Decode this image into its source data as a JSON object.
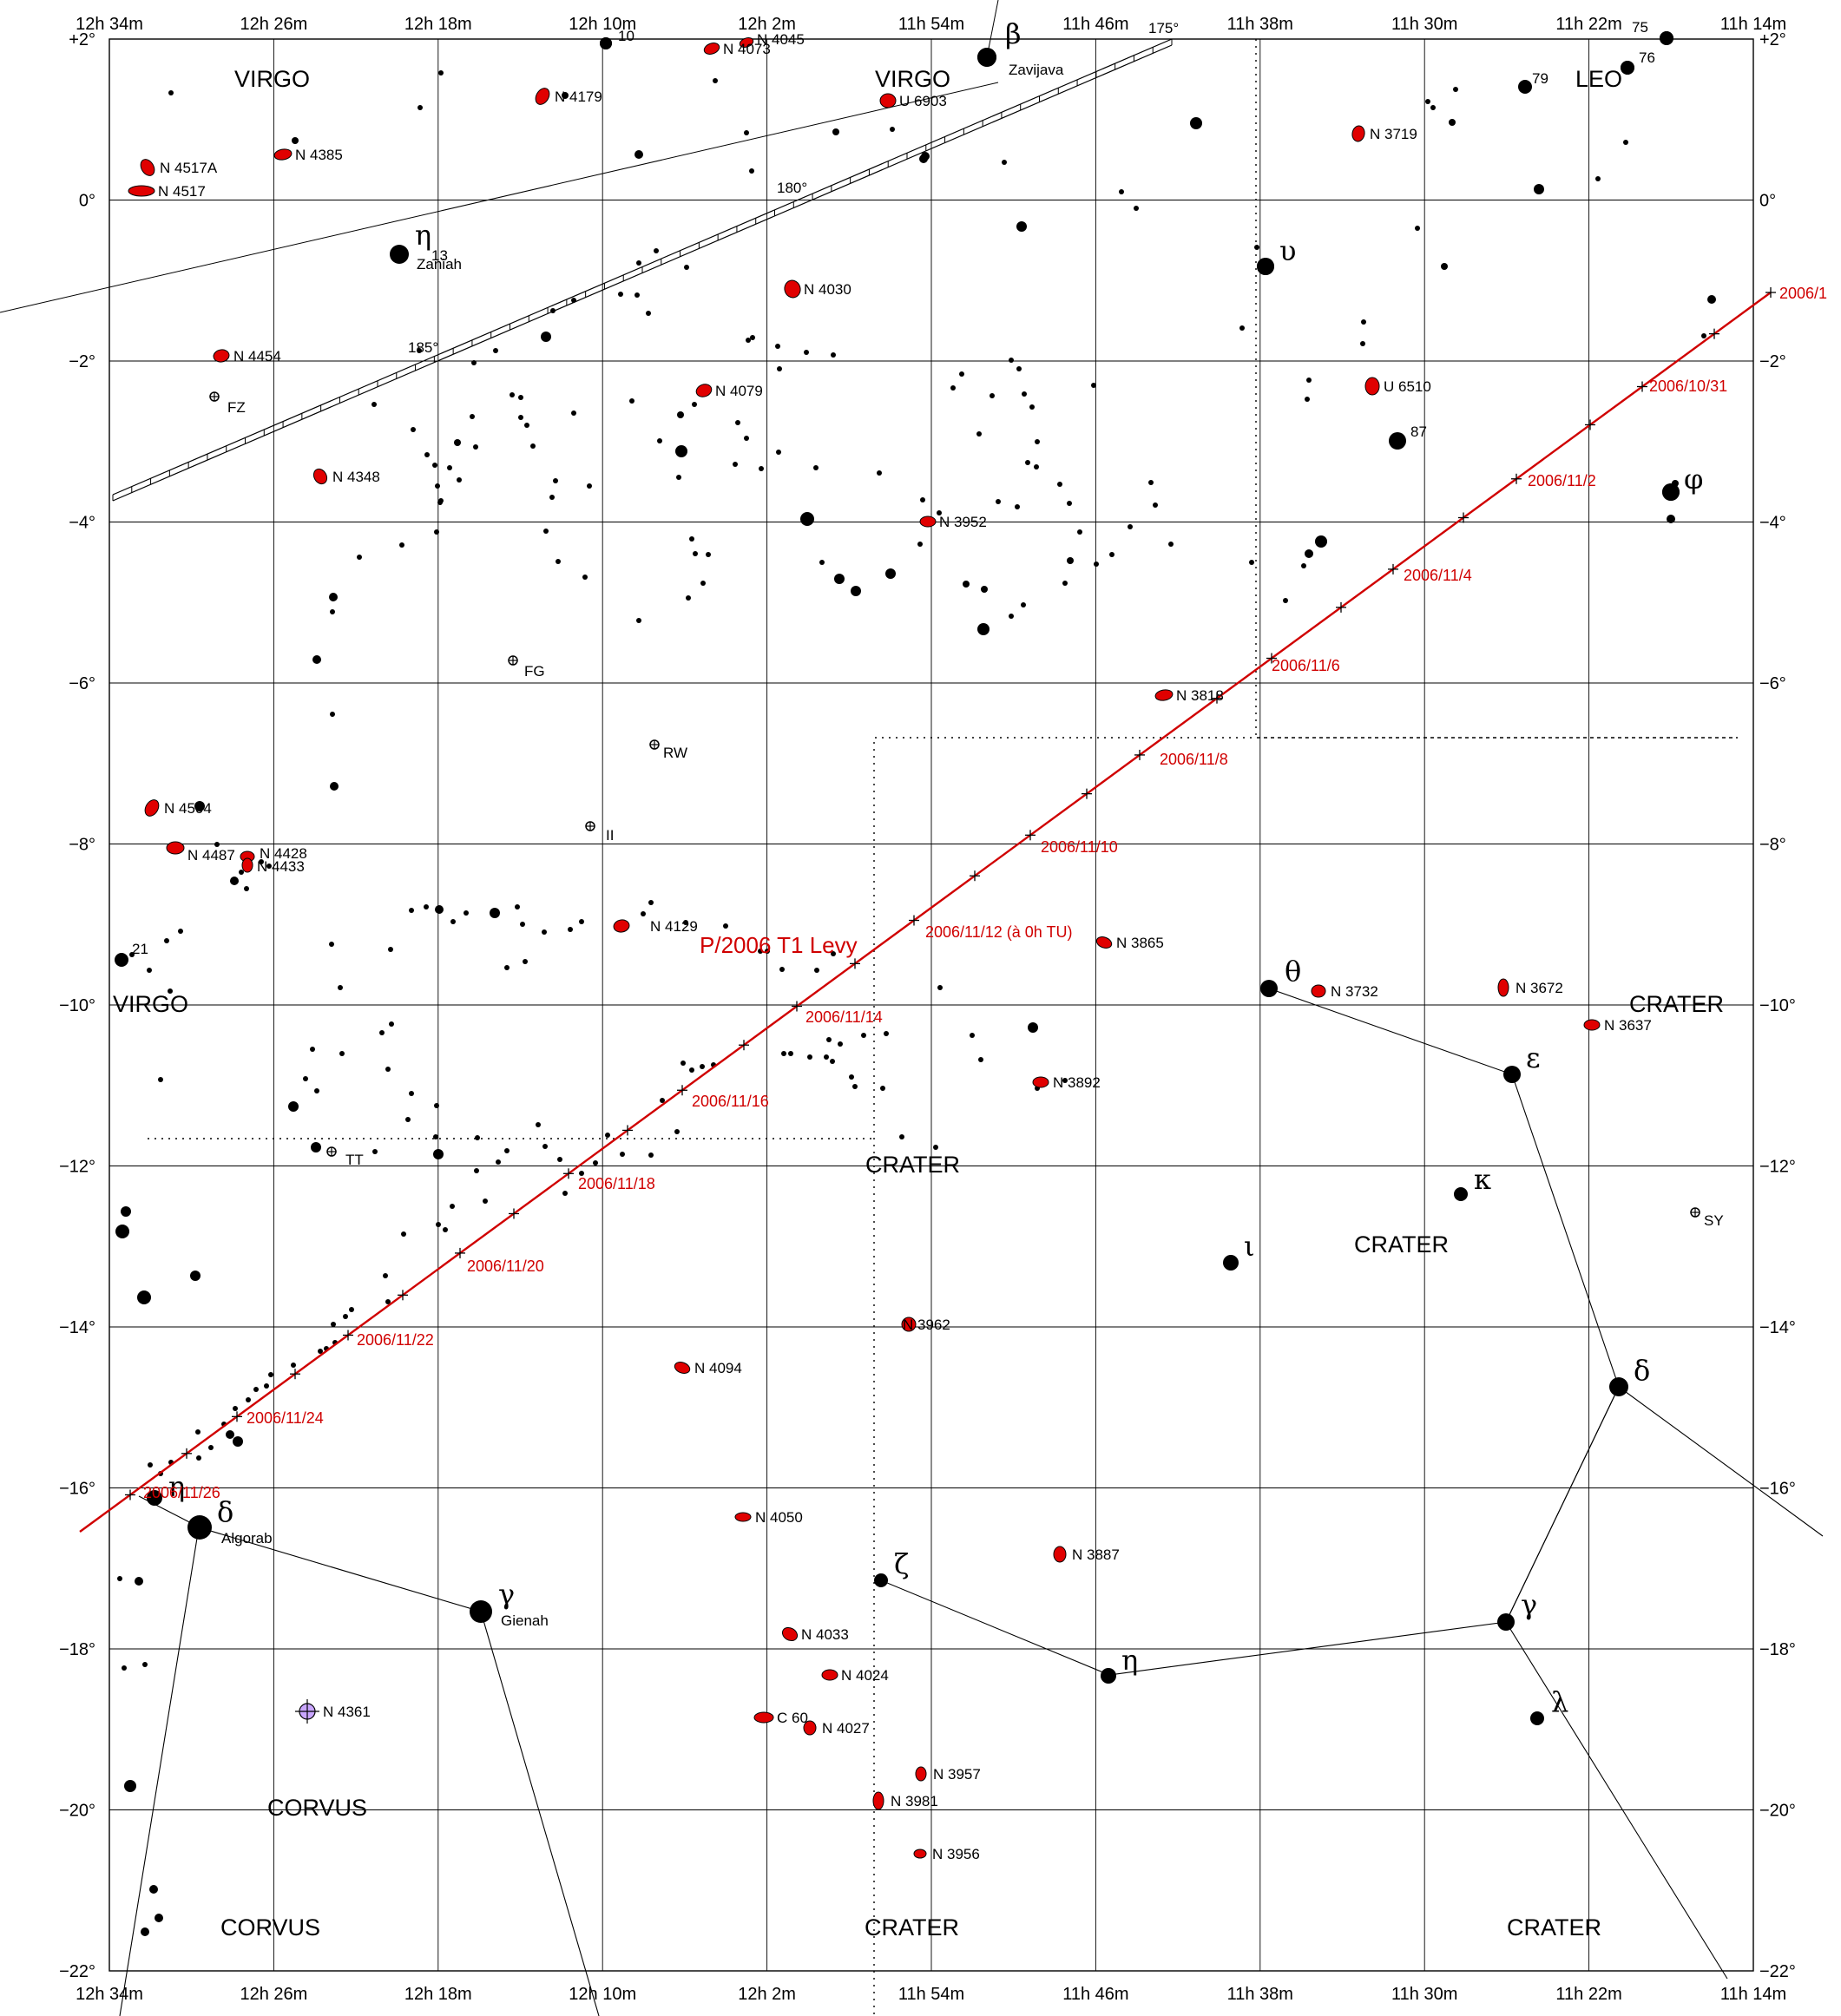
{
  "chart_data": {
    "type": "star_chart",
    "title": "P/2006 T1 Levy",
    "ra_ticks": [
      "12h 34m",
      "12h 26m",
      "12h 18m",
      "12h 10m",
      "12h 2m",
      "11h 54m",
      "11h 46m",
      "11h 38m",
      "11h 30m",
      "11h 22m",
      "11h 14m"
    ],
    "dec_ticks": [
      "+2°",
      "0°",
      "−2°",
      "−4°",
      "−6°",
      "−8°",
      "−10°",
      "−12°",
      "−14°",
      "−16°",
      "−18°",
      "−20°",
      "−22°"
    ],
    "dec_ticks_right": [
      "+2°",
      "0°",
      "−2°",
      "−4°",
      "−6°",
      "−8°",
      "−10°",
      "−12°",
      "−14°",
      "−16°",
      "−18°",
      "−20°",
      "−22°"
    ],
    "ra_range": [
      "12h 34m",
      "11h 14m"
    ],
    "dec_range": [
      2,
      -22
    ],
    "comet_path": [
      {
        "date": "2006/10/31",
        "ra": "11h 18.5m",
        "dec": -2.4
      },
      {
        "date": "2006/11/2",
        "ra": "11h 24.1m",
        "dec": -3.6
      },
      {
        "date": "2006/11/4",
        "ra": "11h 30.0m",
        "dec": -4.7
      },
      {
        "date": "2006/11/6",
        "ra": "11h 36.3m",
        "dec": -5.9
      },
      {
        "date": "2006/11/8",
        "ra": "11h 42.6m",
        "dec": -7.0
      },
      {
        "date": "2006/11/10",
        "ra": "11h 48.2m",
        "dec": -8.1
      },
      {
        "date": "2006/11/12 (à 0h TU)",
        "ra": "11h 54.0m",
        "dec": -9.2
      },
      {
        "date": "2006/11/14",
        "ra": "11h 59.6m",
        "dec": -10.2
      },
      {
        "date": "2006/11/16",
        "ra": "12h 5.1m",
        "dec": -11.2
      },
      {
        "date": "2006/11/18",
        "ra": "12h 10.8m",
        "dec": -12.3
      },
      {
        "date": "2006/11/20",
        "ra": "12h 16.4m",
        "dec": -13.3
      },
      {
        "date": "2006/11/22",
        "ra": "12h 22.0m",
        "dec": -14.3
      },
      {
        "date": "2006/11/24",
        "ra": "12h 27.7m",
        "dec": -15.2
      },
      {
        "date": "2006/11/26",
        "ra": "12h 33.0m",
        "dec": -16.1
      }
    ],
    "path_label_top": "2006/1",
    "constellations": [
      {
        "name": "VIRGO",
        "ra": "12h 29m",
        "dec": 1.5
      },
      {
        "name": "VIRGO",
        "ra": "11h 54m",
        "dec": 1.5
      },
      {
        "name": "LEO",
        "ra": "11h 21m",
        "dec": 1.5
      },
      {
        "name": "VIRGO",
        "ra": "12h 32m",
        "dec": -10.0
      },
      {
        "name": "CRATER",
        "ra": "11h 16m",
        "dec": -10.0
      },
      {
        "name": "CRATER",
        "ra": "11h 54m",
        "dec": -12.0
      },
      {
        "name": "CRATER",
        "ra": "11h 30m",
        "dec": -13.0
      },
      {
        "name": "CORVUS",
        "ra": "12h 25m",
        "dec": -20.0
      },
      {
        "name": "CORVUS",
        "ra": "12h 27m",
        "dec": -21.5
      },
      {
        "name": "CRATER",
        "ra": "11h 56m",
        "dec": -21.5
      },
      {
        "name": "CRATER",
        "ra": "11h 22m",
        "dec": -21.5
      }
    ],
    "ecliptic_labels": [
      "175°",
      "180°",
      "185°"
    ],
    "named_stars": [
      {
        "greek": "β",
        "name": "Zavijava"
      },
      {
        "greek": "η",
        "name": "Zaniah",
        "flamsteed": "13"
      },
      {
        "greek": "υ"
      },
      {
        "greek": "φ"
      },
      {
        "greek": "θ"
      },
      {
        "greek": "ε"
      },
      {
        "greek": "κ"
      },
      {
        "greek": "ι"
      },
      {
        "greek": "δ"
      },
      {
        "greek": "γ"
      },
      {
        "greek": "λ"
      },
      {
        "greek": "η"
      },
      {
        "greek": "ζ"
      },
      {
        "greek": "η"
      },
      {
        "greek": "δ",
        "name": "Algorab"
      },
      {
        "greek": "γ",
        "name": "Gienah"
      }
    ],
    "flamsteed_labels": [
      "10",
      "75",
      "76",
      "79",
      "87",
      "21"
    ],
    "variable_stars": [
      "FZ",
      "FG",
      "RW",
      "II",
      "TT",
      "SY"
    ],
    "galaxies": [
      "N 4073",
      "N 4045",
      "N 4179",
      "U 6903",
      "N 3719",
      "N 4517A",
      "N 4385",
      "N 4517",
      "N 4030",
      "N 4454",
      "N 4079",
      "U 6510",
      "N 4348",
      "N 3952",
      "N 3818",
      "N 4504",
      "N 4487",
      "N 4428",
      "N 4433",
      "N 4129",
      "N 3865",
      "N 3732",
      "N 3672",
      "N 3637",
      "N 3892",
      "N 3962",
      "N 4094",
      "N 4050",
      "N 3887",
      "N 4033",
      "N 4024",
      "N 4027",
      "N 3957",
      "N 3981",
      "N 3956"
    ],
    "planetary_nebula": "N 4361",
    "other_objects": [
      "C 60"
    ]
  }
}
